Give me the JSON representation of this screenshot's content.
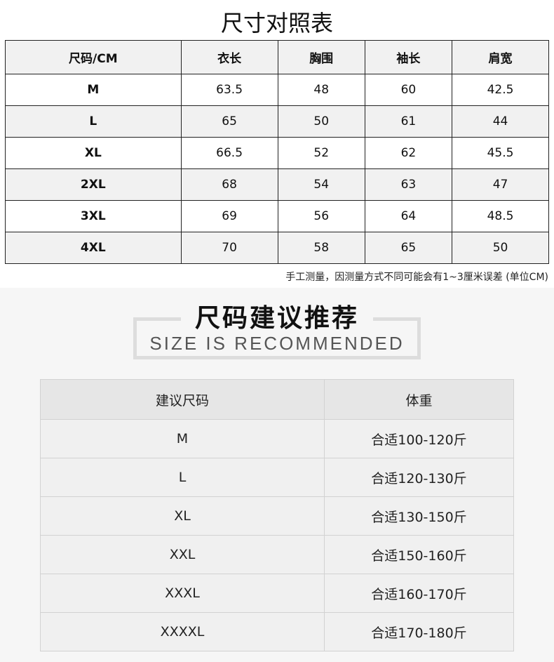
{
  "size_chart": {
    "title": "尺寸对照表",
    "headers": [
      "尺码/CM",
      "衣长",
      "胸围",
      "袖长",
      "肩宽"
    ],
    "rows": [
      [
        "M",
        "63.5",
        "48",
        "60",
        "42.5"
      ],
      [
        "L",
        "65",
        "50",
        "61",
        "44"
      ],
      [
        "XL",
        "66.5",
        "52",
        "62",
        "45.5"
      ],
      [
        "2XL",
        "68",
        "54",
        "63",
        "47"
      ],
      [
        "3XL",
        "69",
        "56",
        "64",
        "48.5"
      ],
      [
        "4XL",
        "70",
        "58",
        "65",
        "50"
      ]
    ],
    "note": "手工测量，因测量方式不同可能会有1~3厘米误差 (单位CM)"
  },
  "recommend": {
    "title": "尺码建议推荐",
    "subtitle": "SIZE IS RECOMMENDED",
    "headers": [
      "建议尺码",
      "体重"
    ],
    "rows": [
      [
        "M",
        "合适100-120斤"
      ],
      [
        "L",
        "合适120-130斤"
      ],
      [
        "XL",
        "合适130-150斤"
      ],
      [
        "XXL",
        "合适150-160斤"
      ],
      [
        "XXXL",
        "合适160-170斤"
      ],
      [
        "XXXXL",
        "合适170-180斤"
      ]
    ]
  }
}
